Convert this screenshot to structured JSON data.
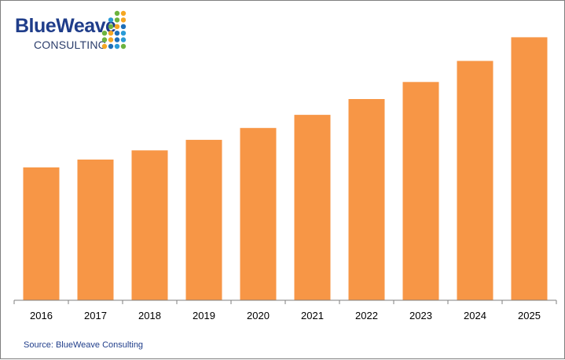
{
  "logo": {
    "name": "BlueWeave",
    "subtitle": "CONSULTING",
    "name_color": "#1f3d8a",
    "subtitle_color": "#2b3d6b",
    "dot_colors": [
      "#1e6fb8",
      "#2a9ad6",
      "#6cb33f",
      "#f5a623"
    ]
  },
  "chart_data": {
    "type": "bar",
    "categories": [
      "2016",
      "2017",
      "2018",
      "2019",
      "2020",
      "2021",
      "2022",
      "2023",
      "2024",
      "2025"
    ],
    "values": [
      10.1,
      10.7,
      11.4,
      12.2,
      13.1,
      14.1,
      15.3,
      16.6,
      18.2,
      20.0
    ],
    "title": "",
    "xlabel": "",
    "ylabel": "",
    "ylim": [
      0,
      20.5
    ],
    "grid": false,
    "legend": "none",
    "bar_color": "#f79646",
    "axis_color": "#7f7f7f"
  },
  "footer": {
    "source": "Source: BlueWeave Consulting",
    "source_color": "#1f3d8a"
  }
}
